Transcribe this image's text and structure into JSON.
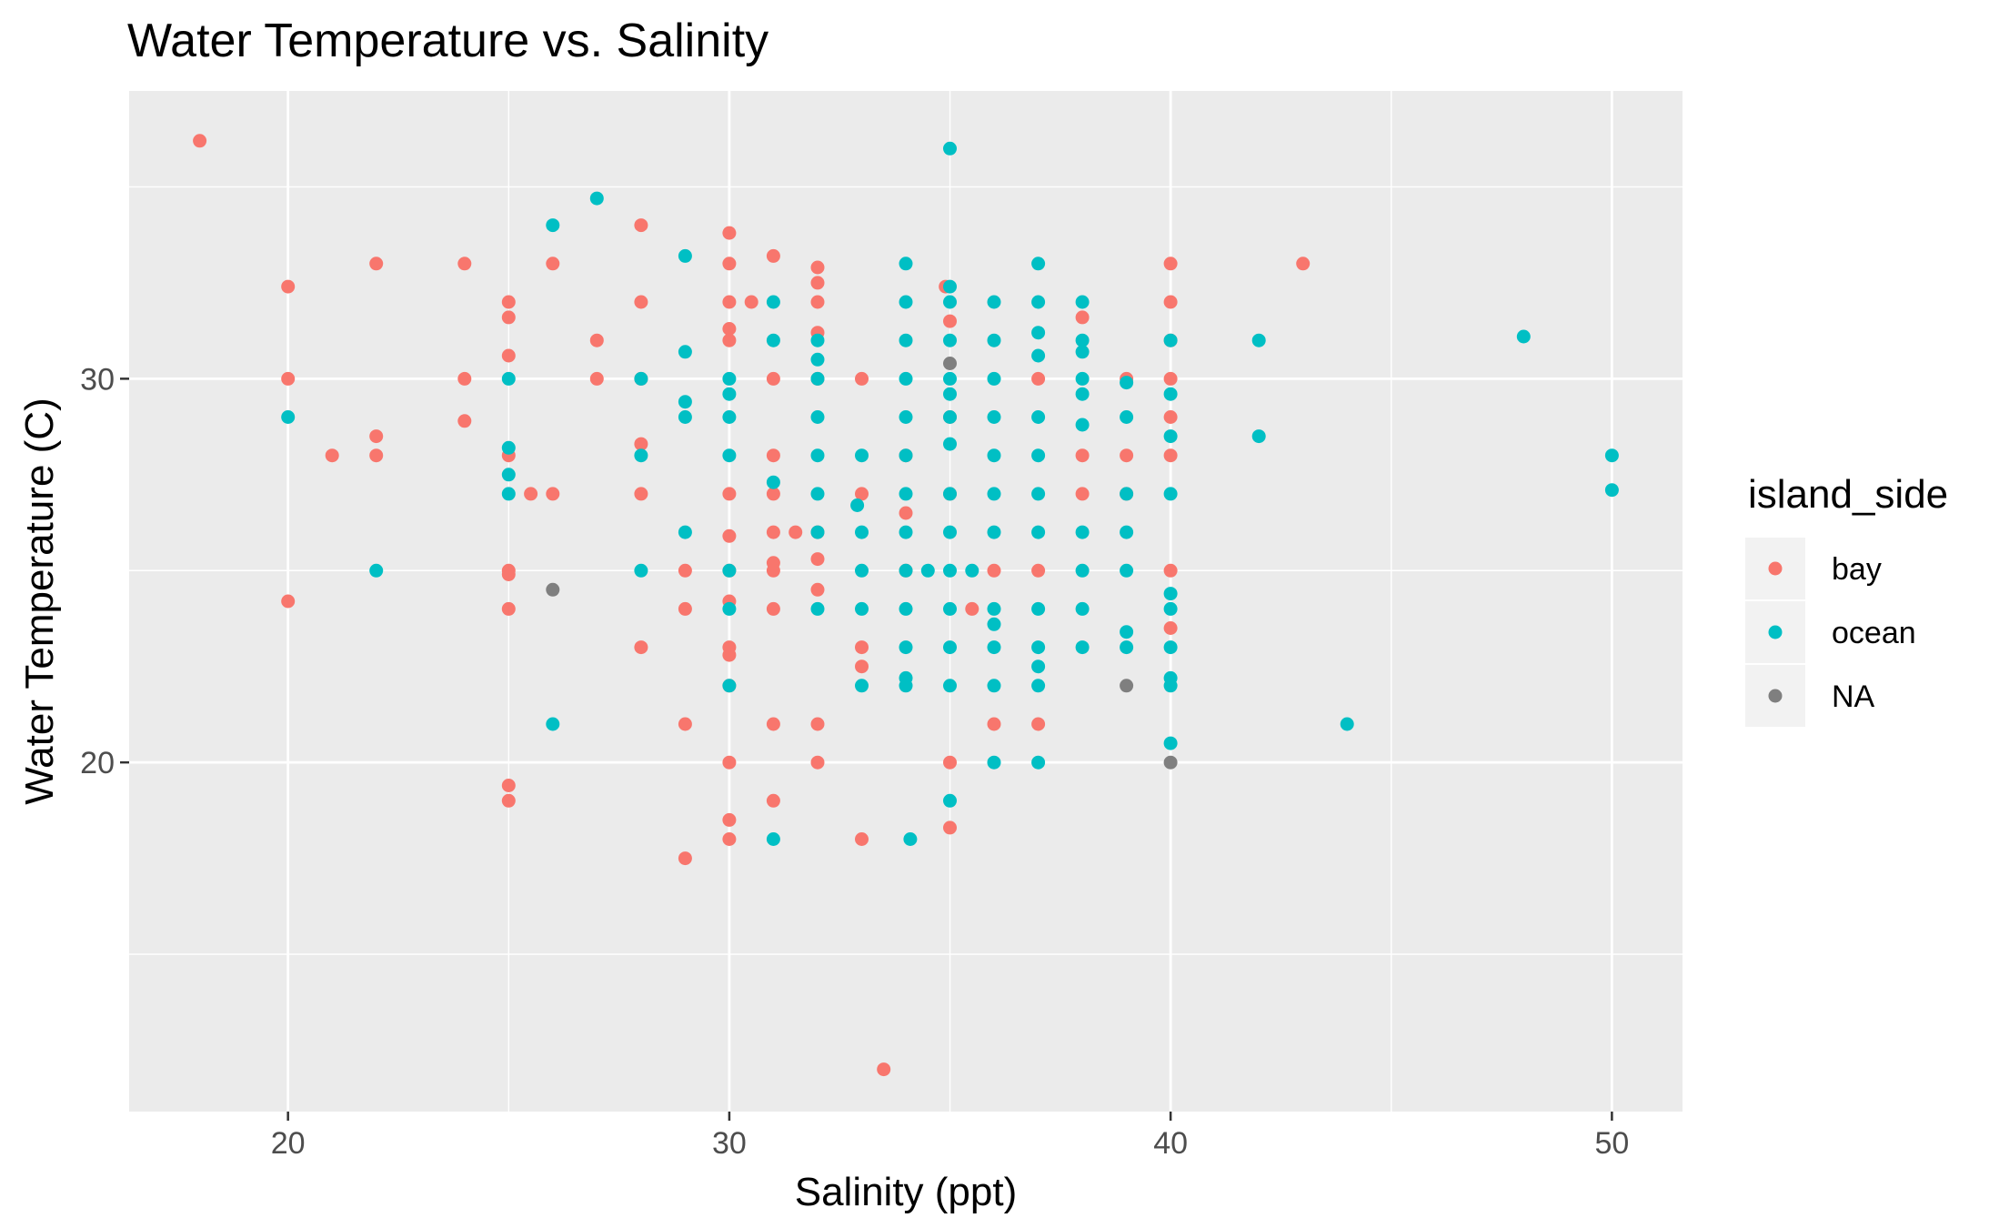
{
  "chart_data": {
    "type": "scatter",
    "title": "Water Temperature vs. Salinity",
    "xlabel": "Salinity (ppt)",
    "ylabel": "Water Temperature (C)",
    "xlim": [
      16.4,
      51.6
    ],
    "ylim": [
      10.9,
      37.5
    ],
    "x_major_ticks": [
      20,
      30,
      40,
      50
    ],
    "x_minor_ticks": [
      25,
      35,
      45
    ],
    "y_major_ticks": [
      20,
      30
    ],
    "y_minor_ticks": [
      15,
      25,
      35
    ],
    "grid": true,
    "legend": {
      "title": "island_side",
      "position": "right"
    },
    "series": [
      {
        "name": "bay",
        "color": "#F8766D",
        "points": [
          [
            18,
            36.2
          ],
          [
            20,
            32.4
          ],
          [
            20,
            30
          ],
          [
            20,
            24.2
          ],
          [
            21,
            28
          ],
          [
            22,
            33
          ],
          [
            22,
            28.5
          ],
          [
            22,
            28
          ],
          [
            24,
            33
          ],
          [
            24,
            30
          ],
          [
            24,
            28.9
          ],
          [
            25,
            32
          ],
          [
            25,
            31.6
          ],
          [
            25,
            30.6
          ],
          [
            25,
            28
          ],
          [
            25,
            25
          ],
          [
            25,
            24.9
          ],
          [
            25,
            24
          ],
          [
            25,
            19.4
          ],
          [
            25,
            19
          ],
          [
            25.5,
            27
          ],
          [
            26,
            27
          ],
          [
            26,
            33
          ],
          [
            27,
            31
          ],
          [
            27,
            30
          ],
          [
            28,
            34
          ],
          [
            28,
            32
          ],
          [
            28,
            30
          ],
          [
            28,
            28.3
          ],
          [
            28,
            27
          ],
          [
            28,
            23
          ],
          [
            29,
            25
          ],
          [
            29,
            24
          ],
          [
            29,
            21
          ],
          [
            29,
            17.5
          ],
          [
            30,
            33.8
          ],
          [
            30,
            33
          ],
          [
            30,
            32
          ],
          [
            30,
            31.3
          ],
          [
            30,
            31
          ],
          [
            30,
            27
          ],
          [
            30,
            25.9
          ],
          [
            30,
            25
          ],
          [
            30,
            24.2
          ],
          [
            30,
            23
          ],
          [
            30,
            22.8
          ],
          [
            30,
            22
          ],
          [
            30,
            20
          ],
          [
            30,
            18.5
          ],
          [
            30,
            18
          ],
          [
            30.5,
            32
          ],
          [
            31,
            33.2
          ],
          [
            31,
            30
          ],
          [
            31,
            28
          ],
          [
            31,
            27
          ],
          [
            31,
            26
          ],
          [
            31,
            25.2
          ],
          [
            31,
            25
          ],
          [
            31,
            24
          ],
          [
            31,
            21
          ],
          [
            31,
            19
          ],
          [
            31.5,
            26
          ],
          [
            32,
            32.9
          ],
          [
            32,
            32.5
          ],
          [
            32,
            32
          ],
          [
            32,
            31.2
          ],
          [
            32,
            30
          ],
          [
            32,
            26
          ],
          [
            32,
            25.3
          ],
          [
            32,
            24.5
          ],
          [
            32,
            21
          ],
          [
            32,
            20
          ],
          [
            33,
            30
          ],
          [
            33,
            27
          ],
          [
            33,
            23
          ],
          [
            33,
            22.5
          ],
          [
            33,
            18
          ],
          [
            33.5,
            12
          ],
          [
            34,
            28
          ],
          [
            34,
            26.5
          ],
          [
            34,
            25
          ],
          [
            34.9,
            32.4
          ],
          [
            35,
            31.5
          ],
          [
            35,
            29
          ],
          [
            35,
            27
          ],
          [
            35,
            20
          ],
          [
            35,
            18.3
          ],
          [
            35.5,
            24
          ],
          [
            36,
            25
          ],
          [
            36,
            21
          ],
          [
            37,
            30
          ],
          [
            37,
            25
          ],
          [
            37,
            21
          ],
          [
            38,
            31.6
          ],
          [
            38,
            28
          ],
          [
            38,
            27
          ],
          [
            39,
            30
          ],
          [
            39,
            28
          ],
          [
            39,
            27
          ],
          [
            40,
            33
          ],
          [
            40,
            32
          ],
          [
            40,
            31
          ],
          [
            40,
            30
          ],
          [
            40,
            29
          ],
          [
            40,
            28
          ],
          [
            40,
            25
          ],
          [
            40,
            23.5
          ],
          [
            43,
            33
          ]
        ]
      },
      {
        "name": "ocean",
        "color": "#00BFC4",
        "points": [
          [
            20,
            29
          ],
          [
            22,
            25
          ],
          [
            25,
            30
          ],
          [
            25,
            28.2
          ],
          [
            25,
            27.5
          ],
          [
            25,
            27
          ],
          [
            26,
            34
          ],
          [
            26,
            21
          ],
          [
            27,
            34.7
          ],
          [
            28,
            30
          ],
          [
            28,
            28
          ],
          [
            28,
            25
          ],
          [
            29,
            33.2
          ],
          [
            29,
            30.7
          ],
          [
            29,
            29.4
          ],
          [
            29,
            29
          ],
          [
            29,
            26
          ],
          [
            30,
            30
          ],
          [
            30,
            29.6
          ],
          [
            30,
            29
          ],
          [
            30,
            28
          ],
          [
            30,
            25
          ],
          [
            30,
            24
          ],
          [
            30,
            22
          ],
          [
            31,
            32
          ],
          [
            31,
            31
          ],
          [
            31,
            27.3
          ],
          [
            31,
            18
          ],
          [
            32,
            31
          ],
          [
            32,
            30.5
          ],
          [
            32,
            30
          ],
          [
            32,
            29
          ],
          [
            32,
            28
          ],
          [
            32,
            27
          ],
          [
            32,
            26
          ],
          [
            32,
            24
          ],
          [
            32.9,
            26.7
          ],
          [
            33,
            28
          ],
          [
            33,
            26
          ],
          [
            33,
            25
          ],
          [
            33,
            24
          ],
          [
            33,
            22
          ],
          [
            34,
            33
          ],
          [
            34,
            32
          ],
          [
            34,
            31
          ],
          [
            34,
            30
          ],
          [
            34,
            29
          ],
          [
            34,
            28
          ],
          [
            34,
            27
          ],
          [
            34,
            26
          ],
          [
            34,
            25
          ],
          [
            34,
            24
          ],
          [
            34,
            23
          ],
          [
            34,
            22.2
          ],
          [
            34,
            22
          ],
          [
            34.1,
            18
          ],
          [
            34.5,
            25
          ],
          [
            35,
            36
          ],
          [
            35,
            32.4
          ],
          [
            35,
            32
          ],
          [
            35,
            31
          ],
          [
            35,
            30
          ],
          [
            35,
            29.6
          ],
          [
            35,
            29
          ],
          [
            35,
            28.3
          ],
          [
            35,
            27
          ],
          [
            35,
            26
          ],
          [
            35,
            25
          ],
          [
            35,
            24
          ],
          [
            35,
            23
          ],
          [
            35,
            22
          ],
          [
            35,
            19
          ],
          [
            35.5,
            25
          ],
          [
            36,
            32
          ],
          [
            36,
            31
          ],
          [
            36,
            30
          ],
          [
            36,
            29
          ],
          [
            36,
            28
          ],
          [
            36,
            27
          ],
          [
            36,
            26
          ],
          [
            36,
            24
          ],
          [
            36,
            23.6
          ],
          [
            36,
            23
          ],
          [
            36,
            22
          ],
          [
            36,
            20
          ],
          [
            37,
            33
          ],
          [
            37,
            32
          ],
          [
            37,
            31.2
          ],
          [
            37,
            30.6
          ],
          [
            37,
            29
          ],
          [
            37,
            28
          ],
          [
            37,
            27
          ],
          [
            37,
            26
          ],
          [
            37,
            24
          ],
          [
            37,
            23
          ],
          [
            37,
            22.5
          ],
          [
            37,
            22
          ],
          [
            37,
            20
          ],
          [
            38,
            32
          ],
          [
            38,
            31
          ],
          [
            38,
            30.7
          ],
          [
            38,
            30
          ],
          [
            38,
            29.6
          ],
          [
            38,
            28.8
          ],
          [
            38,
            26
          ],
          [
            38,
            25
          ],
          [
            38,
            24
          ],
          [
            38,
            23
          ],
          [
            39,
            29.9
          ],
          [
            39,
            29
          ],
          [
            39,
            27
          ],
          [
            39,
            26
          ],
          [
            39,
            25
          ],
          [
            39,
            23.4
          ],
          [
            39,
            23
          ],
          [
            40,
            31
          ],
          [
            40,
            29.6
          ],
          [
            40,
            28.5
          ],
          [
            40,
            27
          ],
          [
            40,
            24.4
          ],
          [
            40,
            24
          ],
          [
            40,
            23
          ],
          [
            40,
            22.2
          ],
          [
            40,
            22
          ],
          [
            40,
            20.5
          ],
          [
            42,
            31
          ],
          [
            42,
            28.5
          ],
          [
            44,
            21
          ],
          [
            48,
            31.1
          ],
          [
            50,
            28
          ],
          [
            50,
            27.1
          ]
        ]
      },
      {
        "name": "NA",
        "color": "#7F7F7F",
        "points": [
          [
            26,
            24.5
          ],
          [
            35,
            30.4
          ],
          [
            39,
            22
          ],
          [
            40,
            20
          ]
        ]
      }
    ]
  }
}
